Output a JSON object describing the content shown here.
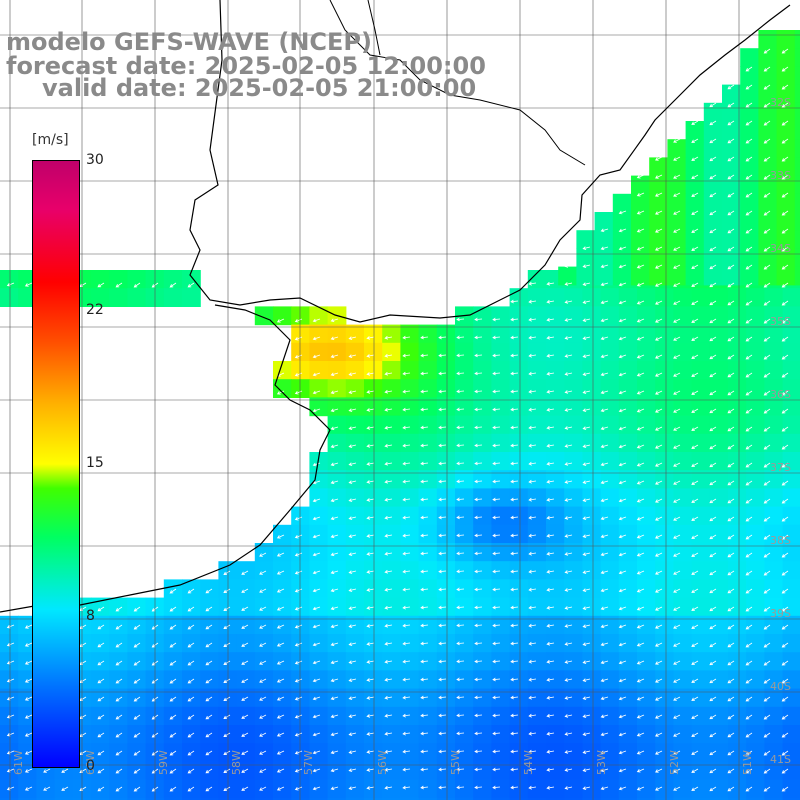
{
  "title": {
    "line1": "modelo GEFS-WAVE (NCEP)",
    "line2": "forecast date: 2025-02-05 12:00:00",
    "line3": "valid date: 2025-02-05 21:00:00"
  },
  "colorbar": {
    "unit": "[m/s]",
    "ticks": [
      "30",
      "22",
      "15",
      "8",
      "0"
    ],
    "tick_values": [
      30,
      22,
      15,
      8,
      0
    ]
  },
  "lat_labels": [
    "32S",
    "33S",
    "34S",
    "35S",
    "36S",
    "37S",
    "38S",
    "39S",
    "40S",
    "41S"
  ],
  "lon_labels": [
    "61W",
    "60W",
    "59W",
    "58W",
    "57W",
    "56W",
    "55W",
    "54W",
    "53W",
    "52W",
    "51W"
  ],
  "colors": {
    "land": "#ffffff",
    "grid": "#555555",
    "coast": "#000000",
    "arrow": "#ffffff"
  },
  "field": {
    "variable": "wind speed",
    "units": "m/s"
  }
}
